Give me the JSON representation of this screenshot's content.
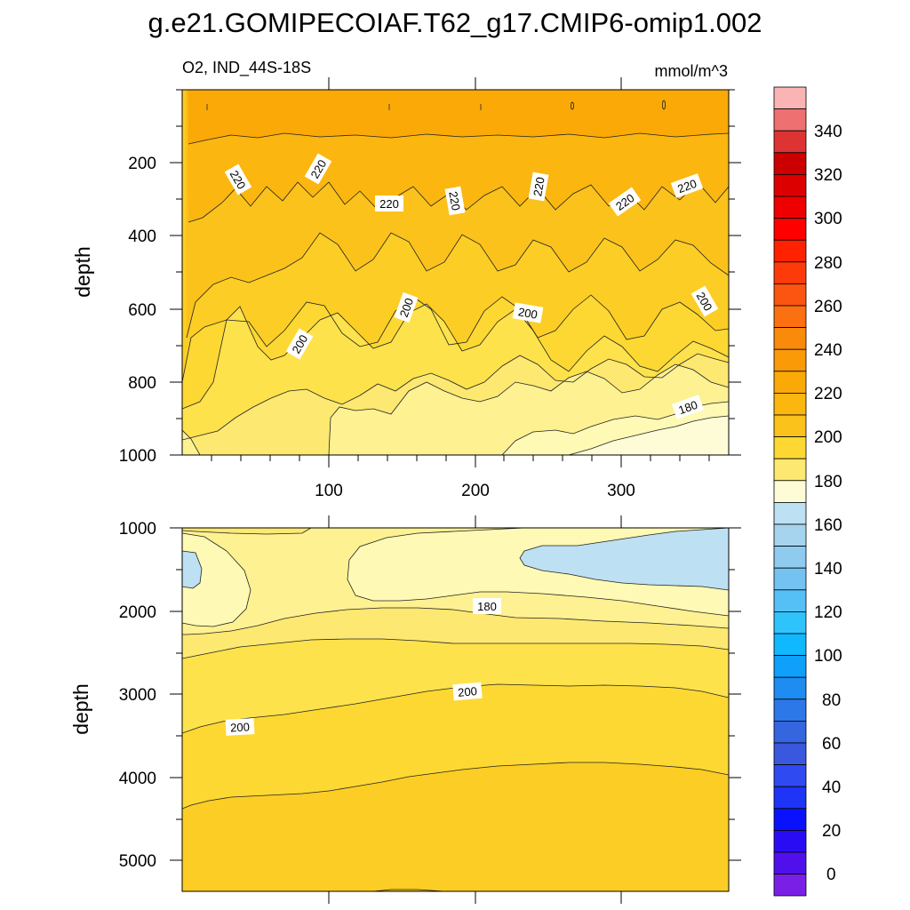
{
  "title": "g.e21.GOMIPECOIAF.T62_g17.CMIP6-omip1.002",
  "variable_region": "O2, IND_44S-18S",
  "units": "mmol/m^3",
  "colors": {
    "lvl_175_180": "#fefcd6",
    "lvl_180_185": "#fef9b4",
    "lvl_185_190": "#fdf192",
    "lvl_190_195": "#fde871",
    "lvl_195_200": "#fde24c",
    "lvl_200_205": "#fdd833",
    "lvl_205_210": "#fccd24",
    "lvl_210_215": "#fcc21c",
    "lvl_215_220": "#fbb610",
    "lvl_220_225": "#faa907",
    "lvl_160_175": "#bde0f2",
    "contour_line": "#222222"
  },
  "chart_data": [
    {
      "type": "contour",
      "panel": "upper",
      "xlabel": "",
      "ylabel": "depth",
      "xlim": [
        0,
        380
      ],
      "ylim": [
        1000,
        0
      ],
      "x_ticks": [
        100,
        200,
        300
      ],
      "y_ticks": [
        200,
        400,
        600,
        800,
        1000
      ],
      "contour_labels": [
        {
          "text": "220",
          "x": 40,
          "y": 240
        },
        {
          "text": "220",
          "x": 93,
          "y": 220
        },
        {
          "text": "220",
          "x": 142,
          "y": 290
        },
        {
          "text": "220",
          "x": 187,
          "y": 290
        },
        {
          "text": "220",
          "x": 243,
          "y": 250
        },
        {
          "text": "220",
          "x": 302,
          "y": 300
        },
        {
          "text": "220",
          "x": 344,
          "y": 240
        },
        {
          "text": "200",
          "x": 155,
          "y": 580
        },
        {
          "text": "200",
          "x": 240,
          "y": 580
        },
        {
          "text": "200",
          "x": 355,
          "y": 580
        },
        {
          "text": "200",
          "x": 80,
          "y": 710
        },
        {
          "text": "180",
          "x": 345,
          "y": 860
        }
      ]
    },
    {
      "type": "contour",
      "panel": "lower",
      "xlabel": "",
      "ylabel": "depth",
      "xlim": [
        0,
        380
      ],
      "ylim": [
        5350,
        1000
      ],
      "x_ticks": [
        100,
        200,
        300
      ],
      "y_ticks": [
        1000,
        2000,
        3000,
        4000,
        5000
      ],
      "contour_labels": [
        {
          "text": "180",
          "x": 208,
          "y": 1950
        },
        {
          "text": "200",
          "x": 195,
          "y": 2980
        },
        {
          "text": "200",
          "x": 40,
          "y": 3400
        }
      ]
    }
  ],
  "colorbar": {
    "labels": [
      "340",
      "320",
      "300",
      "280",
      "260",
      "240",
      "220",
      "200",
      "180",
      "160",
      "140",
      "120",
      "100",
      "80",
      "60",
      "40",
      "20",
      "0"
    ]
  }
}
